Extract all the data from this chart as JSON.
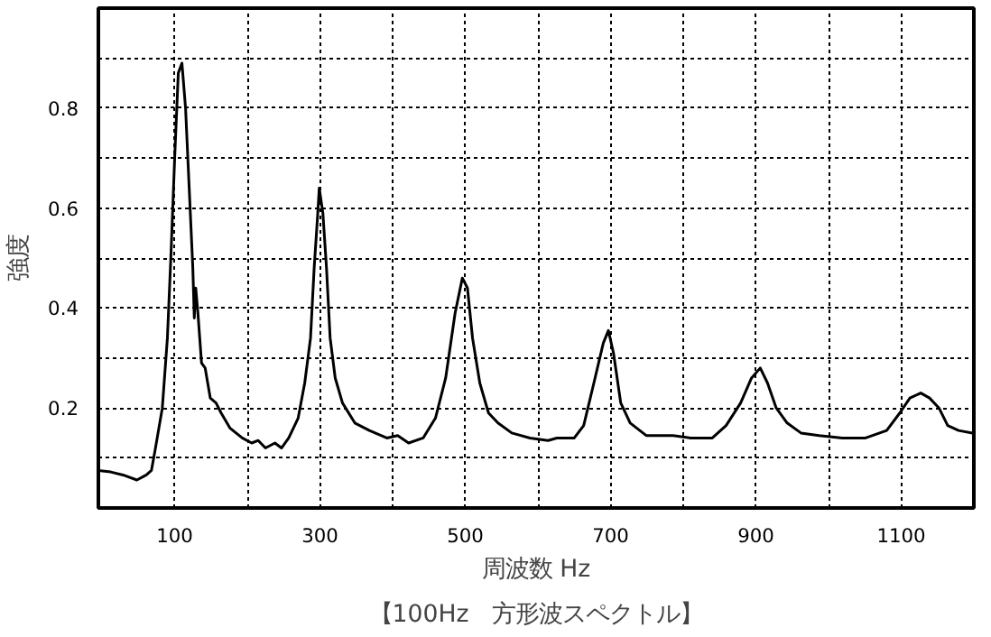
{
  "chart_data": {
    "type": "line",
    "title": "【100Hz　方形波スペクトル】",
    "xlabel": "周波数 Hz",
    "ylabel": "強度",
    "xlim": [
      -5,
      1200
    ],
    "ylim": [
      0,
      1
    ],
    "xticks": [
      100,
      {
        "value": 200,
        "label": null
      },
      300,
      {
        "value": 400,
        "label": null
      },
      500,
      {
        "value": 600,
        "label": null
      },
      700,
      {
        "value": 800,
        "label": null
      },
      900,
      {
        "value": 1000,
        "label": null
      },
      1100
    ],
    "yticks": [
      {
        "value": 0.1,
        "label": null
      },
      0.2,
      {
        "value": 0.3,
        "label": null
      },
      0.4,
      {
        "value": 0.5,
        "label": null
      },
      0.6,
      {
        "value": 0.7,
        "label": null
      },
      0.8,
      {
        "value": 0.9,
        "label": null
      }
    ],
    "grid": true,
    "marker": "none",
    "line_style": "solid",
    "series": [
      {
        "color": "#000000",
        "x": [
          -5,
          12,
          29,
          48,
          61,
          68,
          73,
          83,
          90,
          95,
          100,
          105,
          110,
          115,
          120,
          125,
          127,
          129,
          132,
          137,
          142,
          149,
          157,
          164,
          176,
          193,
          206,
          215,
          225,
          238,
          247,
          257,
          270,
          279,
          287,
          292,
          297,
          299,
          304,
          309,
          314,
          321,
          331,
          348,
          368,
          392,
          407,
          422,
          442,
          459,
          473,
          486,
          496,
          503,
          510,
          520,
          532,
          545,
          564,
          589,
          614,
          626,
          650,
          663,
          677,
          690,
          697,
          704,
          714,
          727,
          749,
          786,
          810,
          840,
          859,
          879,
          894,
          906,
          916,
          928,
          943,
          962,
          987,
          1019,
          1051,
          1080,
          1098,
          1112,
          1127,
          1139,
          1152,
          1164,
          1179,
          1198
        ],
        "values": [
          0.075,
          0.072,
          0.066,
          0.056,
          0.066,
          0.075,
          0.115,
          0.2,
          0.34,
          0.51,
          0.7,
          0.87,
          0.89,
          0.8,
          0.64,
          0.48,
          0.38,
          0.44,
          0.39,
          0.29,
          0.28,
          0.22,
          0.21,
          0.19,
          0.16,
          0.14,
          0.13,
          0.135,
          0.12,
          0.13,
          0.12,
          0.14,
          0.18,
          0.25,
          0.34,
          0.48,
          0.59,
          0.64,
          0.59,
          0.48,
          0.34,
          0.26,
          0.21,
          0.17,
          0.155,
          0.14,
          0.145,
          0.13,
          0.14,
          0.18,
          0.26,
          0.39,
          0.46,
          0.44,
          0.34,
          0.25,
          0.19,
          0.17,
          0.15,
          0.14,
          0.135,
          0.14,
          0.14,
          0.165,
          0.25,
          0.33,
          0.355,
          0.31,
          0.21,
          0.17,
          0.145,
          0.145,
          0.14,
          0.14,
          0.165,
          0.21,
          0.26,
          0.28,
          0.25,
          0.2,
          0.17,
          0.15,
          0.145,
          0.14,
          0.14,
          0.155,
          0.19,
          0.22,
          0.23,
          0.22,
          0.2,
          0.165,
          0.155,
          0.15
        ]
      }
    ]
  }
}
